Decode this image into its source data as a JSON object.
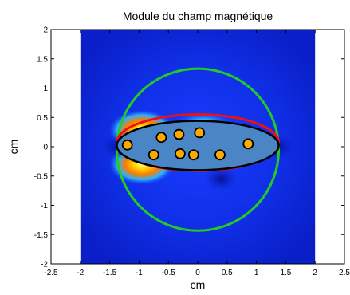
{
  "chart_data": {
    "type": "heatmap",
    "title": "Module du champ magnétique",
    "xlabel": "cm",
    "ylabel": "cm",
    "xlim": [
      -2.5,
      2.5
    ],
    "ylim": [
      -2,
      2
    ],
    "xticks": [
      "-2.5",
      "-2",
      "-1.5",
      "-1",
      "-0.5",
      "0",
      "0.5",
      "1",
      "1.5",
      "2",
      "2.5"
    ],
    "yticks": [
      "2",
      "1.5",
      "1",
      "0.5",
      "0",
      "-0.5",
      "-1",
      "-1.5",
      "-2"
    ],
    "xtick_values": [
      -2.5,
      -2,
      -1.5,
      -1,
      -0.5,
      0,
      0.5,
      1,
      1.5,
      2,
      2.5
    ],
    "ytick_values": [
      2,
      1.5,
      1,
      0.5,
      0,
      -0.5,
      -1,
      -1.5,
      -2
    ],
    "field_extent": {
      "x": [
        -2,
        2
      ],
      "y": [
        -2,
        2
      ]
    },
    "colormap": "jet",
    "hotspots": [
      {
        "x": -0.95,
        "y": 0.28,
        "level": "high"
      },
      {
        "x": -0.95,
        "y": -0.3,
        "level": "high"
      },
      {
        "x": 0.1,
        "y": 0.35,
        "level": "medium"
      }
    ],
    "circle": {
      "center": [
        0,
        -0.05
      ],
      "radius": 1.38,
      "color": "#22cc22"
    },
    "red_ellipse": {
      "center": [
        0,
        0.07
      ],
      "rx": 1.38,
      "ry": 0.48,
      "color": "#ee1111"
    },
    "black_ellipse": {
      "center": [
        0,
        0.02
      ],
      "rx": 1.38,
      "ry": 0.42,
      "fill": "#4a86c6",
      "color": "#000000"
    },
    "points": [
      {
        "x": -1.2,
        "y": 0.03
      },
      {
        "x": -0.75,
        "y": -0.14
      },
      {
        "x": -0.62,
        "y": 0.16
      },
      {
        "x": -0.32,
        "y": 0.21
      },
      {
        "x": -0.3,
        "y": -0.12
      },
      {
        "x": -0.07,
        "y": -0.14
      },
      {
        "x": 0.03,
        "y": 0.24
      },
      {
        "x": 0.38,
        "y": -0.14
      },
      {
        "x": 0.86,
        "y": 0.05
      }
    ],
    "point_fill": "#ffaa00",
    "grid": false
  }
}
